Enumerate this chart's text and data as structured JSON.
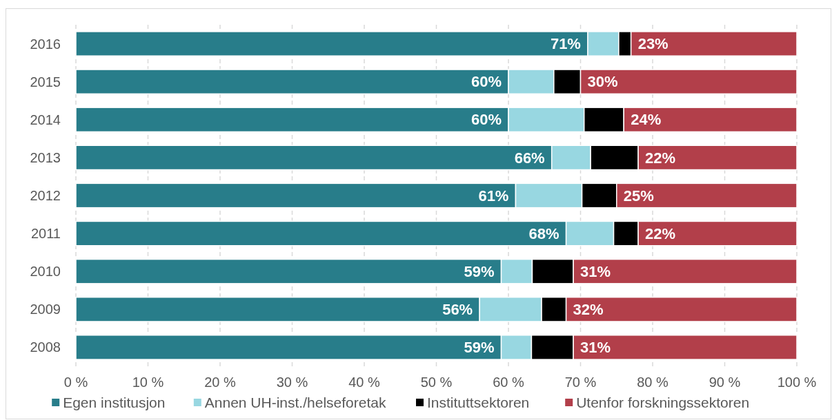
{
  "chart_data": {
    "type": "bar",
    "orientation": "horizontal",
    "stacked": true,
    "categories": [
      "2016",
      "2015",
      "2014",
      "2013",
      "2012",
      "2011",
      "2010",
      "2009",
      "2008"
    ],
    "series": [
      {
        "name": "Egen institusjon",
        "color": "#287d8a",
        "values": [
          71,
          60,
          60,
          66,
          61,
          68,
          59,
          56,
          59
        ],
        "value_labels": [
          "71%",
          "60%",
          "60%",
          "66%",
          "61%",
          "68%",
          "59%",
          "56%",
          "59%"
        ]
      },
      {
        "name": "Annen UH-inst./helseforetak",
        "color": "#98d7e1",
        "values": [
          4.3,
          6.3,
          10.5,
          5.4,
          9.2,
          6.6,
          4.3,
          8.6,
          4.2
        ]
      },
      {
        "name": "Instituttsektoren",
        "color": "#000000",
        "values": [
          1.7,
          3.7,
          5.5,
          6.6,
          4.8,
          3.4,
          5.7,
          3.4,
          5.8
        ]
      },
      {
        "name": "Utenfor forskningssektoren",
        "color": "#b23f4a",
        "values": [
          23,
          30,
          24,
          22,
          25,
          22,
          31,
          32,
          31
        ],
        "value_labels": [
          "23%",
          "30%",
          "24%",
          "22%",
          "25%",
          "22%",
          "31%",
          "32%",
          "31%"
        ]
      }
    ],
    "xlim": [
      0,
      100
    ],
    "xticks": [
      {
        "value": 0,
        "label": "0 %"
      },
      {
        "value": 10,
        "label": "10 %"
      },
      {
        "value": 20,
        "label": "20 %"
      },
      {
        "value": 30,
        "label": "30 %"
      },
      {
        "value": 40,
        "label": "40 %"
      },
      {
        "value": 50,
        "label": "50 %"
      },
      {
        "value": 60,
        "label": "60 %"
      },
      {
        "value": 70,
        "label": "70 %"
      },
      {
        "value": 80,
        "label": "80 %"
      },
      {
        "value": 90,
        "label": "90 %"
      },
      {
        "value": 100,
        "label": "100 %"
      }
    ],
    "grid": "x",
    "legend": "bottom"
  }
}
